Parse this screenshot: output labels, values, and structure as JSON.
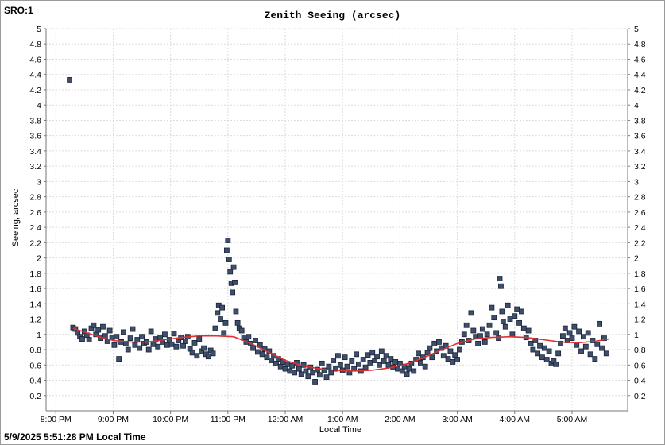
{
  "site_label": "SRO:1",
  "timestamp": "5/9/2025 5:51:28 PM Local Time",
  "chart_data": {
    "type": "scatter",
    "title": "Zenith Seeing (arcsec)",
    "xlabel": "Local Time",
    "ylabel": "Seeing, arcsec",
    "xlim": [
      19.83,
      29.97
    ],
    "ylim": [
      0,
      5
    ],
    "yticks": [
      0.2,
      0.4,
      0.6,
      0.8,
      1,
      1.2,
      1.4,
      1.6,
      1.8,
      2,
      2.2,
      2.4,
      2.6,
      2.8,
      3,
      3.2,
      3.4,
      3.6,
      3.8,
      4,
      4.2,
      4.4,
      4.6,
      4.8,
      5
    ],
    "xticks": [
      {
        "value": 20,
        "label": "8:00 PM"
      },
      {
        "value": 21,
        "label": "9:00 PM"
      },
      {
        "value": 22,
        "label": "10:00 PM"
      },
      {
        "value": 23,
        "label": "11:00 PM"
      },
      {
        "value": 24,
        "label": "12:00 AM"
      },
      {
        "value": 25,
        "label": "1:00 AM"
      },
      {
        "value": 26,
        "label": "2:00 AM"
      },
      {
        "value": 27,
        "label": "3:00 AM"
      },
      {
        "value": 28,
        "label": "4:00 AM"
      },
      {
        "value": 29,
        "label": "5:00 AM"
      }
    ],
    "grid": true,
    "marker_color": "#3d4f6d",
    "trend_color": "#e03030",
    "points": [
      [
        20.24,
        4.33
      ],
      [
        20.3,
        1.09
      ],
      [
        20.34,
        1.07
      ],
      [
        20.38,
        1.02
      ],
      [
        20.42,
        0.97
      ],
      [
        20.46,
        0.94
      ],
      [
        20.5,
        1.04
      ],
      [
        20.54,
        0.99
      ],
      [
        20.58,
        0.93
      ],
      [
        20.62,
        1.08
      ],
      [
        20.66,
        1.12
      ],
      [
        20.7,
        1.0
      ],
      [
        20.74,
        1.06
      ],
      [
        20.78,
        0.95
      ],
      [
        20.82,
        1.1
      ],
      [
        20.86,
        0.98
      ],
      [
        20.9,
        0.91
      ],
      [
        20.94,
        1.05
      ],
      [
        20.98,
        0.96
      ],
      [
        21.02,
        0.86
      ],
      [
        21.06,
        0.97
      ],
      [
        21.1,
        0.68
      ],
      [
        21.14,
        0.9
      ],
      [
        21.18,
        1.03
      ],
      [
        21.22,
        0.88
      ],
      [
        21.26,
        0.8
      ],
      [
        21.3,
        0.95
      ],
      [
        21.34,
        1.07
      ],
      [
        21.38,
        0.86
      ],
      [
        21.42,
        0.93
      ],
      [
        21.46,
        0.82
      ],
      [
        21.5,
        0.97
      ],
      [
        21.54,
        0.88
      ],
      [
        21.58,
        0.9
      ],
      [
        21.62,
        0.8
      ],
      [
        21.66,
        1.04
      ],
      [
        21.7,
        0.87
      ],
      [
        21.74,
        0.94
      ],
      [
        21.78,
        0.84
      ],
      [
        21.82,
        0.96
      ],
      [
        21.86,
        0.9
      ],
      [
        21.9,
        1.0
      ],
      [
        21.94,
        0.86
      ],
      [
        21.98,
        0.93
      ],
      [
        22.02,
        0.87
      ],
      [
        22.06,
        1.01
      ],
      [
        22.1,
        0.84
      ],
      [
        22.14,
        0.92
      ],
      [
        22.18,
        0.96
      ],
      [
        22.22,
        0.85
      ],
      [
        22.26,
        0.91
      ],
      [
        22.3,
        0.97
      ],
      [
        22.34,
        0.81
      ],
      [
        22.38,
        0.76
      ],
      [
        22.42,
        0.89
      ],
      [
        22.46,
        0.72
      ],
      [
        22.5,
        0.94
      ],
      [
        22.54,
        0.78
      ],
      [
        22.58,
        0.82
      ],
      [
        22.62,
        0.74
      ],
      [
        22.66,
        0.71
      ],
      [
        22.7,
        0.79
      ],
      [
        22.74,
        0.75
      ],
      [
        22.78,
        1.08
      ],
      [
        22.82,
        1.28
      ],
      [
        22.84,
        1.38
      ],
      [
        22.87,
        1.2
      ],
      [
        22.9,
        1.35
      ],
      [
        22.93,
        1.02
      ],
      [
        22.96,
        1.15
      ],
      [
        22.98,
        2.1
      ],
      [
        23.0,
        2.23
      ],
      [
        23.02,
        1.98
      ],
      [
        23.04,
        1.82
      ],
      [
        23.06,
        1.67
      ],
      [
        23.08,
        1.55
      ],
      [
        23.1,
        1.88
      ],
      [
        23.12,
        1.68
      ],
      [
        23.14,
        1.3
      ],
      [
        23.17,
        1.15
      ],
      [
        23.2,
        1.08
      ],
      [
        23.24,
        1.05
      ],
      [
        23.28,
        0.95
      ],
      [
        23.32,
        0.9
      ],
      [
        23.36,
        0.97
      ],
      [
        23.4,
        0.88
      ],
      [
        23.44,
        0.82
      ],
      [
        23.48,
        0.92
      ],
      [
        23.52,
        0.77
      ],
      [
        23.56,
        0.86
      ],
      [
        23.6,
        0.74
      ],
      [
        23.64,
        0.81
      ],
      [
        23.68,
        0.7
      ],
      [
        23.72,
        0.78
      ],
      [
        23.76,
        0.66
      ],
      [
        23.8,
        0.72
      ],
      [
        23.84,
        0.62
      ],
      [
        23.88,
        0.68
      ],
      [
        23.92,
        0.58
      ],
      [
        23.96,
        0.64
      ],
      [
        24.0,
        0.55
      ],
      [
        24.04,
        0.61
      ],
      [
        24.08,
        0.52
      ],
      [
        24.12,
        0.59
      ],
      [
        24.16,
        0.5
      ],
      [
        24.2,
        0.63
      ],
      [
        24.24,
        0.55
      ],
      [
        24.28,
        0.48
      ],
      [
        24.32,
        0.6
      ],
      [
        24.36,
        0.52
      ],
      [
        24.4,
        0.45
      ],
      [
        24.44,
        0.57
      ],
      [
        24.48,
        0.5
      ],
      [
        24.52,
        0.38
      ],
      [
        24.56,
        0.54
      ],
      [
        24.6,
        0.47
      ],
      [
        24.64,
        0.62
      ],
      [
        24.68,
        0.53
      ],
      [
        24.72,
        0.44
      ],
      [
        24.76,
        0.58
      ],
      [
        24.8,
        0.5
      ],
      [
        24.84,
        0.66
      ],
      [
        24.88,
        0.55
      ],
      [
        24.92,
        0.72
      ],
      [
        24.96,
        0.6
      ],
      [
        25.0,
        0.53
      ],
      [
        25.04,
        0.7
      ],
      [
        25.08,
        0.58
      ],
      [
        25.12,
        0.5
      ],
      [
        25.16,
        0.65
      ],
      [
        25.2,
        0.55
      ],
      [
        25.24,
        0.74
      ],
      [
        25.28,
        0.61
      ],
      [
        25.32,
        0.52
      ],
      [
        25.36,
        0.67
      ],
      [
        25.4,
        0.57
      ],
      [
        25.44,
        0.73
      ],
      [
        25.48,
        0.63
      ],
      [
        25.52,
        0.76
      ],
      [
        25.56,
        0.66
      ],
      [
        25.6,
        0.71
      ],
      [
        25.64,
        0.6
      ],
      [
        25.68,
        0.78
      ],
      [
        25.72,
        0.65
      ],
      [
        25.76,
        0.72
      ],
      [
        25.8,
        0.6
      ],
      [
        25.84,
        0.68
      ],
      [
        25.88,
        0.57
      ],
      [
        25.92,
        0.64
      ],
      [
        25.96,
        0.55
      ],
      [
        26.0,
        0.62
      ],
      [
        26.04,
        0.52
      ],
      [
        26.08,
        0.58
      ],
      [
        26.12,
        0.48
      ],
      [
        26.16,
        0.55
      ],
      [
        26.2,
        0.62
      ],
      [
        26.24,
        0.52
      ],
      [
        26.28,
        0.67
      ],
      [
        26.32,
        0.75
      ],
      [
        26.36,
        0.63
      ],
      [
        26.4,
        0.7
      ],
      [
        26.44,
        0.58
      ],
      [
        26.48,
        0.76
      ],
      [
        26.52,
        0.82
      ],
      [
        26.56,
        0.7
      ],
      [
        26.6,
        0.88
      ],
      [
        26.64,
        0.78
      ],
      [
        26.68,
        0.9
      ],
      [
        26.72,
        0.82
      ],
      [
        26.76,
        0.72
      ],
      [
        26.8,
        0.85
      ],
      [
        26.84,
        0.68
      ],
      [
        26.88,
        0.78
      ],
      [
        26.92,
        0.64
      ],
      [
        26.96,
        0.73
      ],
      [
        27.0,
        0.67
      ],
      [
        27.04,
        0.8
      ],
      [
        27.08,
        0.9
      ],
      [
        27.12,
        1.0
      ],
      [
        27.16,
        1.12
      ],
      [
        27.2,
        0.92
      ],
      [
        27.24,
        1.28
      ],
      [
        27.28,
        1.05
      ],
      [
        27.32,
        0.97
      ],
      [
        27.36,
        0.88
      ],
      [
        27.4,
        0.98
      ],
      [
        27.44,
        1.07
      ],
      [
        27.48,
        0.9
      ],
      [
        27.52,
        1.0
      ],
      [
        27.56,
        1.12
      ],
      [
        27.6,
        1.35
      ],
      [
        27.64,
        1.22
      ],
      [
        27.68,
        1.02
      ],
      [
        27.72,
        0.95
      ],
      [
        27.74,
        1.73
      ],
      [
        27.76,
        1.63
      ],
      [
        27.78,
        1.3
      ],
      [
        27.8,
        1.17
      ],
      [
        27.84,
        1.1
      ],
      [
        27.88,
        1.38
      ],
      [
        27.92,
        1.2
      ],
      [
        27.96,
        1.0
      ],
      [
        28.0,
        1.24
      ],
      [
        28.04,
        1.33
      ],
      [
        28.08,
        1.15
      ],
      [
        28.12,
        1.3
      ],
      [
        28.16,
        1.08
      ],
      [
        28.2,
        0.96
      ],
      [
        28.24,
        1.05
      ],
      [
        28.28,
        0.88
      ],
      [
        28.32,
        0.8
      ],
      [
        28.36,
        0.92
      ],
      [
        28.4,
        0.75
      ],
      [
        28.44,
        0.85
      ],
      [
        28.48,
        0.7
      ],
      [
        28.52,
        0.82
      ],
      [
        28.56,
        0.67
      ],
      [
        28.6,
        0.78
      ],
      [
        28.64,
        0.62
      ],
      [
        28.68,
        0.65
      ],
      [
        28.72,
        0.61
      ],
      [
        28.76,
        0.75
      ],
      [
        28.8,
        0.88
      ],
      [
        28.84,
        0.98
      ],
      [
        28.88,
        1.08
      ],
      [
        28.92,
        0.92
      ],
      [
        28.96,
        1.02
      ],
      [
        29.0,
        0.95
      ],
      [
        29.04,
        1.1
      ],
      [
        29.08,
        0.86
      ],
      [
        29.12,
        1.04
      ],
      [
        29.16,
        0.78
      ],
      [
        29.2,
        0.97
      ],
      [
        29.24,
        0.84
      ],
      [
        29.28,
        1.02
      ],
      [
        29.32,
        0.74
      ],
      [
        29.36,
        0.92
      ],
      [
        29.4,
        0.68
      ],
      [
        29.44,
        0.87
      ],
      [
        29.48,
        1.14
      ],
      [
        29.52,
        0.82
      ],
      [
        29.56,
        0.95
      ],
      [
        29.6,
        0.75
      ]
    ],
    "trend": [
      [
        20.3,
        1.08
      ],
      [
        20.5,
        1.03
      ],
      [
        20.75,
        0.97
      ],
      [
        21.0,
        0.92
      ],
      [
        21.3,
        0.9
      ],
      [
        21.6,
        0.9
      ],
      [
        21.9,
        0.93
      ],
      [
        22.2,
        0.96
      ],
      [
        22.5,
        0.98
      ],
      [
        22.8,
        0.98
      ],
      [
        23.1,
        0.97
      ],
      [
        23.4,
        0.88
      ],
      [
        23.7,
        0.77
      ],
      [
        24.0,
        0.66
      ],
      [
        24.3,
        0.59
      ],
      [
        24.6,
        0.55
      ],
      [
        24.9,
        0.53
      ],
      [
        25.2,
        0.52
      ],
      [
        25.5,
        0.53
      ],
      [
        25.8,
        0.56
      ],
      [
        26.1,
        0.61
      ],
      [
        26.4,
        0.69
      ],
      [
        26.7,
        0.79
      ],
      [
        27.0,
        0.88
      ],
      [
        27.3,
        0.94
      ],
      [
        27.6,
        0.96
      ],
      [
        27.9,
        0.97
      ],
      [
        28.2,
        0.96
      ],
      [
        28.5,
        0.93
      ],
      [
        28.8,
        0.9
      ],
      [
        29.1,
        0.89
      ],
      [
        29.4,
        0.91
      ],
      [
        29.65,
        0.94
      ]
    ]
  }
}
